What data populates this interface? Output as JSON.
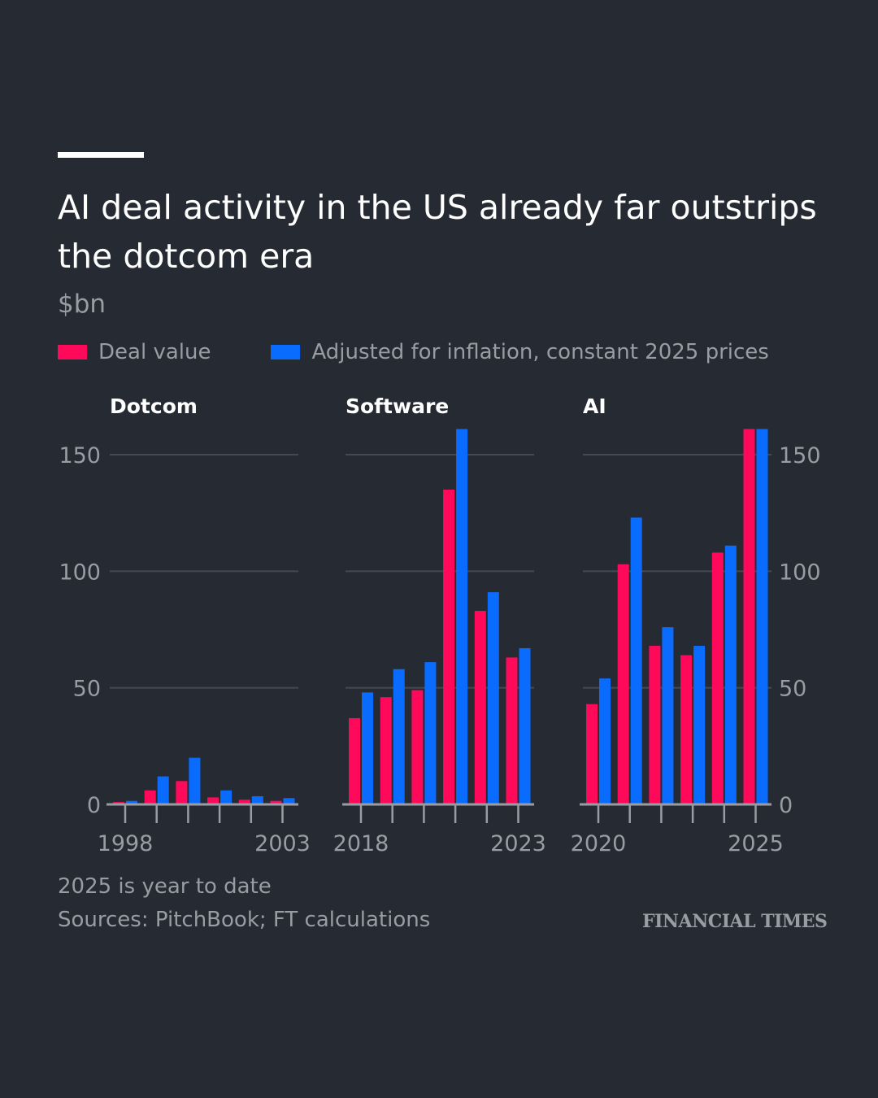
{
  "header": {
    "title": "AI deal activity in the US already far outstrips the dotcom era",
    "unit": "$bn"
  },
  "legend": [
    {
      "label": "Deal value",
      "color": "#ff0a5a"
    },
    {
      "label": "Adjusted for inflation, constant 2025 prices",
      "color": "#0a6cff"
    }
  ],
  "footer": {
    "note": "2025 is year to date",
    "sources": "Sources: PitchBook; FT calculations",
    "brand": "FINANCIAL TIMES"
  },
  "chart_data": {
    "type": "bar",
    "ylim": [
      0,
      160
    ],
    "yticks": [
      0,
      50,
      100,
      150
    ],
    "grid": true,
    "legend_placement": "top-left",
    "series_names": [
      "Deal value",
      "Adjusted for inflation, constant 2025 prices"
    ],
    "colors": [
      "#ff0a5a",
      "#0a6cff"
    ],
    "panels": [
      {
        "title": "Dotcom",
        "years": [
          1998,
          1999,
          2000,
          2001,
          2002,
          2003
        ],
        "tick_labels": [
          "1998",
          "2003"
        ],
        "series": [
          {
            "name": "Deal value",
            "values": [
              1,
              6,
              10,
              3,
              2,
              1.5
            ]
          },
          {
            "name": "Adjusted for inflation, constant 2025 prices",
            "values": [
              1.5,
              12,
              20,
              6,
              3.5,
              2.7
            ]
          }
        ]
      },
      {
        "title": "Software",
        "years": [
          2018,
          2019,
          2020,
          2021,
          2022,
          2023
        ],
        "tick_labels": [
          "2018",
          "2023"
        ],
        "series": [
          {
            "name": "Deal value",
            "values": [
              37,
              46,
              49,
              135,
              83,
              63
            ]
          },
          {
            "name": "Adjusted for inflation, constant 2025 prices",
            "values": [
              48,
              58,
              61,
              161,
              91,
              67
            ]
          }
        ]
      },
      {
        "title": "AI",
        "years": [
          2020,
          2021,
          2022,
          2023,
          2024,
          2025
        ],
        "tick_labels": [
          "2020",
          "2025"
        ],
        "series": [
          {
            "name": "Deal value",
            "values": [
              43,
              103,
              68,
              64,
              108,
              161
            ]
          },
          {
            "name": "Adjusted for inflation, constant 2025 prices",
            "values": [
              54,
              123,
              76,
              68,
              111,
              161
            ]
          }
        ]
      }
    ]
  }
}
